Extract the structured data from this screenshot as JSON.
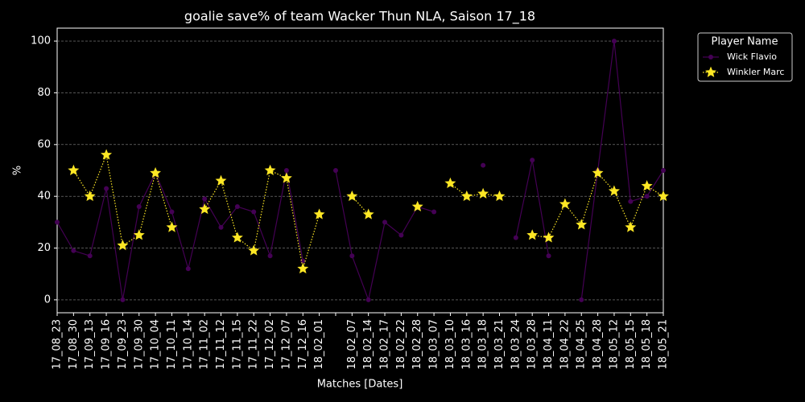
{
  "chart_data": {
    "type": "line",
    "title": "goalie save% of team Wacker Thun NLA, Saison 17_18",
    "x_label": "Matches [Dates]",
    "y_label": "%",
    "legend_title": "Player Name",
    "legend": "upper left outside",
    "categories": [
      "17_08_23",
      "17_08_30",
      "17_09_13",
      "17_09_16",
      "17_09_23",
      "17_09_30",
      "17_10_04",
      "17_10_11",
      "17_10_14",
      "17_11_02",
      "17_11_12",
      "17_11_15",
      "17_11_22",
      "17_12_02",
      "17_12_07",
      "17_12_16",
      "18_02_01",
      null,
      "18_02_07",
      "18_02_14",
      "18_02_17",
      "18_02_22",
      "18_02_28",
      "18_03_07",
      "18_03_10",
      "18_03_16",
      "18_03_18",
      "18_03_21",
      "18_03_24",
      "18_03_28",
      "18_04_11",
      "18_04_22",
      "18_04_25",
      "18_04_28",
      "18_05_12",
      "18_05_15",
      "18_05_18",
      "18_05_21"
    ],
    "series": [
      {
        "name": "Wick Flavio",
        "color": "#440154",
        "marker": "circle",
        "dash": "solid",
        "values": [
          30,
          19,
          17,
          43,
          0,
          36,
          49,
          34,
          12,
          39,
          28,
          36,
          34,
          17,
          50,
          15,
          null,
          50,
          17,
          0,
          30,
          25,
          36,
          34,
          null,
          null,
          52,
          null,
          24,
          54,
          17,
          null,
          0,
          50,
          100,
          38,
          40,
          50
        ]
      },
      {
        "name": "Winkler Marc",
        "color": "#fde725",
        "marker": "star",
        "dash": "dotted",
        "values": [
          null,
          50,
          40,
          56,
          21,
          25,
          49,
          28,
          null,
          35,
          46,
          24,
          19,
          50,
          47,
          12,
          33,
          null,
          40,
          33,
          null,
          null,
          36,
          null,
          45,
          40,
          41,
          40,
          null,
          25,
          24,
          37,
          29,
          49,
          42,
          28,
          44,
          40
        ]
      }
    ],
    "ylim": [
      -5,
      105
    ],
    "yticks": [
      0,
      20,
      40,
      60,
      80,
      100
    ],
    "grid": true
  }
}
